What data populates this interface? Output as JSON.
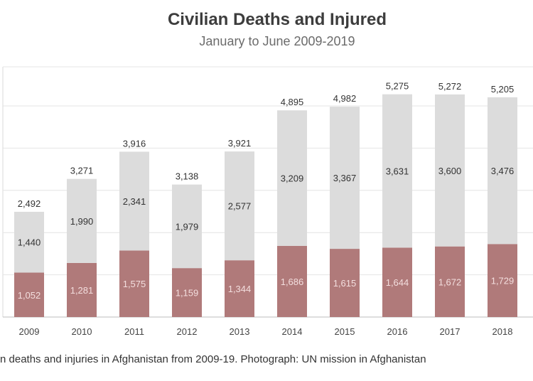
{
  "chart_data": {
    "type": "bar",
    "stacked": true,
    "title": "Civilian Deaths and Injured",
    "subtitle": "January to June 2009-2019",
    "categories": [
      "2009",
      "2010",
      "2011",
      "2012",
      "2013",
      "2014",
      "2015",
      "2016",
      "2017",
      "2018"
    ],
    "series": [
      {
        "values": [
          1052,
          1281,
          1575,
          1159,
          1344,
          1686,
          1615,
          1644,
          1672,
          1729
        ],
        "color": "#b07a7a"
      },
      {
        "values": [
          1440,
          1990,
          2341,
          1979,
          2577,
          3209,
          3367,
          3631,
          3600,
          3476
        ],
        "color": "#dcdcdc"
      }
    ],
    "totals": [
      2492,
      3271,
      3916,
      3138,
      3921,
      4895,
      4982,
      5275,
      5272,
      5205
    ],
    "grid": true,
    "legend": "none"
  },
  "caption": "n deaths and injuries in Afghanistan from 2009-19. Photograph: UN mission in Afghanistan"
}
